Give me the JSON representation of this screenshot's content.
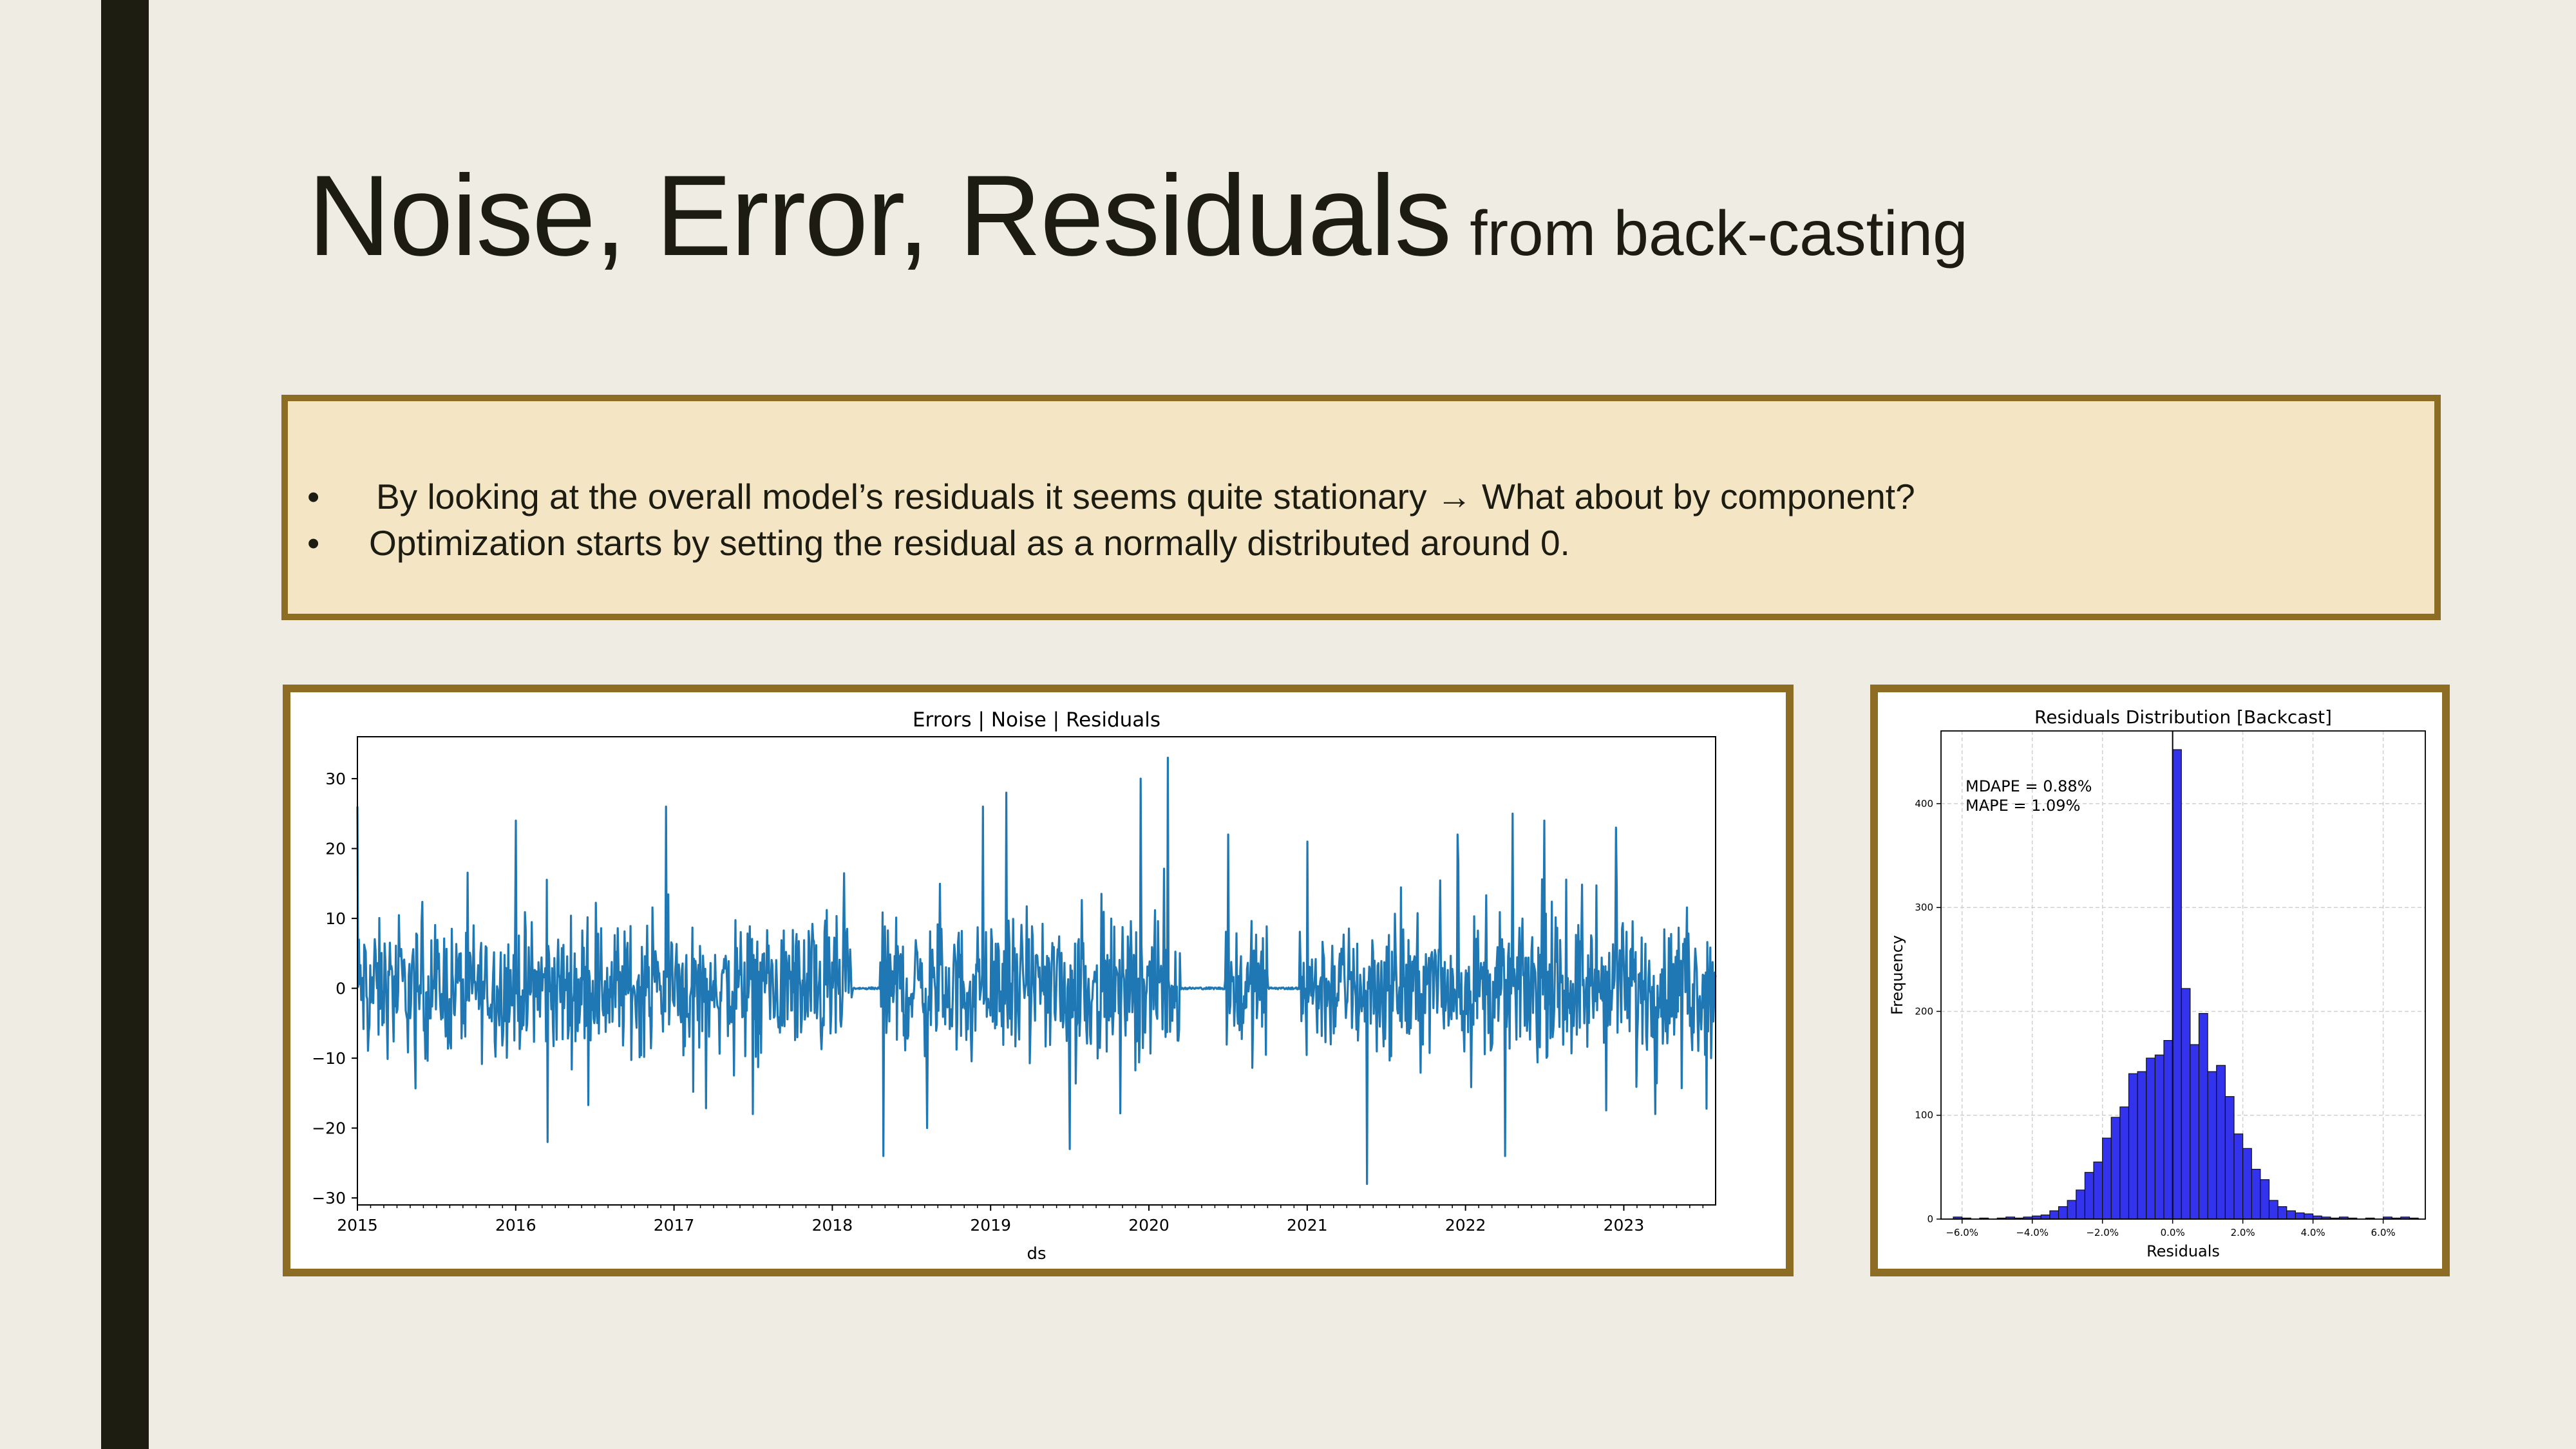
{
  "slide": {
    "title_main": "Noise, Error, Residuals",
    "title_sub": "from back-casting",
    "bullets": [
      {
        "marker": "•",
        "text": " By looking at the overall model’s residuals it seems quite stationary → What about by component?"
      },
      {
        "marker": "•",
        "text": "Optimization starts by setting the residual as a normally distributed around 0."
      }
    ]
  },
  "colors": {
    "accent": "#8c6d23",
    "box_fill": "#f4e6c4",
    "background": "#efece3",
    "line_series": "#1f77b4",
    "hist_bars": "#3333ee"
  },
  "chart_data": [
    {
      "type": "line",
      "title": "Errors | Noise | Residuals",
      "xlabel": "ds",
      "ylabel": "",
      "xlim": [
        2015.0,
        2023.58
      ],
      "ylim": [
        -31,
        36
      ],
      "xticks": [
        2015,
        2016,
        2017,
        2018,
        2019,
        2020,
        2021,
        2022,
        2023
      ],
      "yticks": [
        -30,
        -20,
        -10,
        0,
        10,
        20,
        30
      ],
      "grid": false,
      "series": [
        {
          "name": "",
          "note_values": "daily residuals approx 2015-01 to 2023-08; flat near 0 during 2018.1-2018.3 and 2020.2-2020.5",
          "flat_periods": [
            [
              2018.13,
              2018.3
            ],
            [
              2020.2,
              2020.48
            ],
            [
              2020.75,
              2020.95
            ]
          ],
          "spike_points": [
            [
              2015.0,
              26
            ],
            [
              2016.0,
              24
            ],
            [
              2016.2,
              -22
            ],
            [
              2016.95,
              26
            ],
            [
              2017.5,
              -18
            ],
            [
              2018.32,
              -24
            ],
            [
              2018.6,
              -20
            ],
            [
              2018.95,
              26
            ],
            [
              2019.1,
              28
            ],
            [
              2019.5,
              -23
            ],
            [
              2019.95,
              30
            ],
            [
              2020.12,
              33
            ],
            [
              2020.5,
              22
            ],
            [
              2021.0,
              21
            ],
            [
              2021.38,
              -28
            ],
            [
              2021.95,
              22
            ],
            [
              2022.25,
              -24
            ],
            [
              2022.3,
              25
            ],
            [
              2022.5,
              24
            ],
            [
              2022.95,
              23
            ],
            [
              2023.2,
              -18
            ],
            [
              2023.55,
              -10
            ]
          ],
          "typical_range": [
            -13,
            14
          ]
        }
      ]
    },
    {
      "type": "bar",
      "title": "Residuals Distribution [Backcast]",
      "xlabel": "Residuals",
      "ylabel": "Frequency",
      "xlim": [
        -6.6,
        7.2
      ],
      "ylim": [
        0,
        470
      ],
      "xticks": [
        "-6.0%",
        "-4.0%",
        "-2.0%",
        "0.0%",
        "2.0%",
        "4.0%",
        "6.0%"
      ],
      "xtick_values": [
        -6,
        -4,
        -2,
        0,
        2,
        4,
        6
      ],
      "yticks": [
        0,
        100,
        200,
        300,
        400
      ],
      "grid": true,
      "vline_at": 0,
      "annotations": [
        "MDAPE = 0.88%",
        "MAPE = 1.09%"
      ],
      "bin_start": -6.25,
      "bin_width": 0.25,
      "values": [
        2,
        1,
        0,
        1,
        0,
        1,
        2,
        1,
        2,
        3,
        4,
        8,
        12,
        18,
        28,
        45,
        55,
        78,
        98,
        108,
        140,
        142,
        155,
        158,
        172,
        452,
        222,
        168,
        198,
        142,
        148,
        118,
        82,
        68,
        48,
        38,
        18,
        12,
        8,
        6,
        5,
        3,
        2,
        1,
        2,
        1,
        0,
        1,
        0,
        2,
        1,
        2,
        1
      ],
      "series": [
        {
          "name": "",
          "values": "see values"
        }
      ]
    }
  ]
}
